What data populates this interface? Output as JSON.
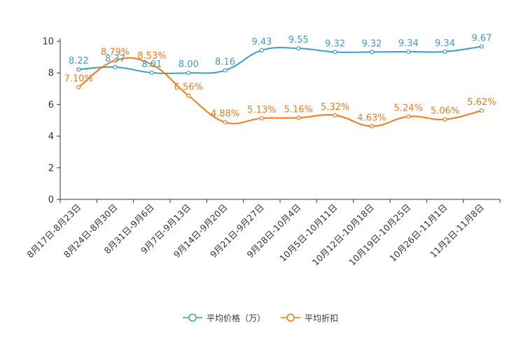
{
  "chart_data": {
    "type": "line",
    "title": "",
    "xlabel": "",
    "ylabel": "",
    "ylim": [
      0,
      10
    ],
    "yticks": [
      0,
      2,
      4,
      6,
      8,
      10
    ],
    "categories": [
      "8月17日-8月23日",
      "8月24日-8月30日",
      "8月31日-9月6日",
      "9月7日-9月13日",
      "9月14日-9月20日",
      "9月21日-9月27日",
      "9月28日-10月4日",
      "10月5日-10月11日",
      "10月12日-10月18日",
      "10月19日-10月25日",
      "10月26日-11月1日",
      "11月2日-11月8日"
    ],
    "series": [
      {
        "name": "平均价格（万）",
        "values": [
          8.22,
          8.37,
          8.01,
          8.0,
          8.16,
          9.43,
          9.55,
          9.32,
          9.32,
          9.34,
          9.34,
          9.67
        ],
        "labels": [
          "8.22",
          "8.37",
          "8.01",
          "8.00",
          "8.16",
          "9.43",
          "9.55",
          "9.32",
          "9.32",
          "9.34",
          "9.34",
          "9.67"
        ],
        "color": "#3d9ccc"
      },
      {
        "name": "平均折扣",
        "values": [
          7.1,
          8.79,
          8.53,
          6.56,
          4.88,
          5.13,
          5.16,
          5.32,
          4.63,
          5.24,
          5.06,
          5.62
        ],
        "labels": [
          "7.10%",
          "8.79%",
          "8.53%",
          "6.56%",
          "4.88%",
          "5.13%",
          "5.16%",
          "5.32%",
          "4.63%",
          "5.24%",
          "5.06%",
          "5.62%"
        ],
        "color": "#f07a1a"
      }
    ],
    "legend_position": "bottom-center",
    "grid": false
  }
}
